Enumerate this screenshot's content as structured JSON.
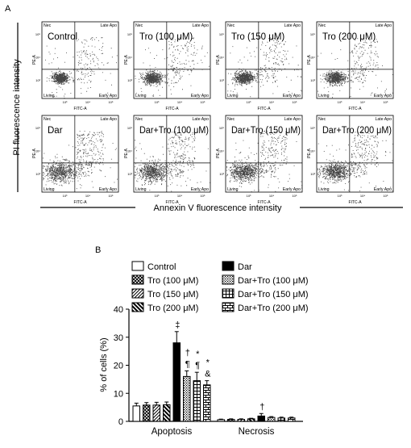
{
  "panel_a": {
    "letter": "A",
    "y_label": "PI fluorescence intensity",
    "x_label": "Annexin V fluorescence intensity",
    "plot_axis": {
      "y": "PE-A",
      "x": "FITC-A"
    },
    "quadrants": {
      "top_left": "Nec",
      "top_right": "Late Apo",
      "bottom_left": "Living",
      "bottom_right": "Early Apo"
    },
    "tick_labels": [
      "10³",
      "10⁴",
      "10⁵"
    ],
    "plots": [
      {
        "title": "Control",
        "intensity": 0.7
      },
      {
        "title": "Tro (100 μM)",
        "intensity": 0.8
      },
      {
        "title": "Tro (150 μM)",
        "intensity": 0.85
      },
      {
        "title": "Tro (200 μM)",
        "intensity": 0.85
      },
      {
        "title": "Dar",
        "intensity": 1.4
      },
      {
        "title": "Dar+Tro (100 μM)",
        "intensity": 1.25
      },
      {
        "title": "Dar+Tro (150 μM)",
        "intensity": 1.25
      },
      {
        "title": "Dar+Tro (200 μM)",
        "intensity": 1.2
      }
    ]
  },
  "panel_b": {
    "letter": "B",
    "legend_columns": [
      [
        "Control",
        "Tro (100 μM)",
        "Tro (150 μM)",
        "Tro (200 μM)"
      ],
      [
        "Dar",
        "Dar+Tro (100 μM)",
        "Dar+Tro (150 μM)",
        "Dar+Tro (200 μM)"
      ]
    ]
  },
  "chart_data": {
    "type": "bar",
    "title": "",
    "xlabel": "",
    "ylabel": "% of cells (%)",
    "ylim": [
      0,
      40
    ],
    "yticks": [
      0,
      10,
      20,
      30,
      40
    ],
    "grid": false,
    "legend": "top",
    "categories": [
      "Apoptosis",
      "Necrosis"
    ],
    "series": [
      {
        "name": "Control",
        "pattern": "open",
        "values": [
          5.5,
          0.6
        ],
        "errors": [
          1.0,
          0.2
        ],
        "marks": [
          "",
          ""
        ]
      },
      {
        "name": "Tro (100 μM)",
        "pattern": "crosshatch",
        "values": [
          5.8,
          0.7
        ],
        "errors": [
          0.9,
          0.2
        ],
        "marks": [
          "",
          ""
        ]
      },
      {
        "name": "Tro (150 μM)",
        "pattern": "diag",
        "values": [
          5.8,
          0.7
        ],
        "errors": [
          1.0,
          0.2
        ],
        "marks": [
          "",
          ""
        ]
      },
      {
        "name": "Tro (200 μM)",
        "pattern": "diagbold",
        "values": [
          5.9,
          0.9
        ],
        "errors": [
          1.0,
          0.2
        ],
        "marks": [
          "",
          ""
        ]
      },
      {
        "name": "Dar",
        "pattern": "solid",
        "values": [
          28.0,
          1.9
        ],
        "errors": [
          4.0,
          0.9
        ],
        "marks": [
          "‡",
          "†"
        ]
      },
      {
        "name": "Dar+Tro (100 μM)",
        "pattern": "dots",
        "values": [
          16.0,
          1.4
        ],
        "errors": [
          2.0,
          0.3
        ],
        "marks": [
          "† ¶",
          ""
        ]
      },
      {
        "name": "Dar+Tro (150 μM)",
        "pattern": "grid",
        "values": [
          14.5,
          1.2
        ],
        "errors": [
          3.0,
          0.3
        ],
        "marks": [
          "* ¶",
          ""
        ]
      },
      {
        "name": "Dar+Tro (200 μM)",
        "pattern": "brick",
        "values": [
          13.0,
          1.2
        ],
        "errors": [
          1.5,
          0.3
        ],
        "marks": [
          "* &",
          ""
        ]
      }
    ]
  }
}
